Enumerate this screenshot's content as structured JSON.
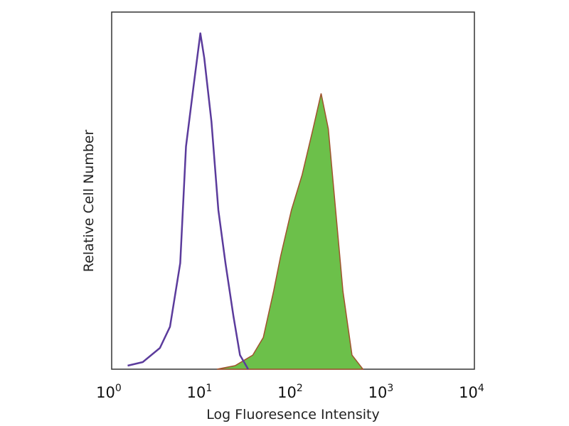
{
  "chart_data": {
    "type": "area",
    "title": "",
    "xlabel": "Log Fluoresence Intensity",
    "ylabel": "Relative Cell Number",
    "x_scale": "log",
    "xlim": [
      1,
      10000
    ],
    "ylim": [
      0,
      100
    ],
    "grid": false,
    "x_ticks": [
      {
        "base": "10",
        "exp": "0",
        "value": 1
      },
      {
        "base": "10",
        "exp": "1",
        "value": 10
      },
      {
        "base": "10",
        "exp": "2",
        "value": 100
      },
      {
        "base": "10",
        "exp": "3",
        "value": 1000
      },
      {
        "base": "10",
        "exp": "4",
        "value": 10000
      }
    ],
    "series": [
      {
        "style": "outline",
        "color": "#5b3b9c",
        "x": [
          1.5,
          2.2,
          3.4,
          4.4,
          5.7,
          6.6,
          8,
          9.5,
          10.5,
          12.6,
          15,
          18,
          22,
          26,
          32
        ],
        "y": [
          1,
          2,
          6,
          12,
          30,
          63,
          80,
          95,
          88,
          70,
          45,
          30,
          15,
          4,
          0
        ]
      },
      {
        "style": "filled",
        "color": "#6cc04a",
        "edge_color": "#a0522d",
        "x": [
          14.5,
          23,
          36,
          47,
          61,
          73,
          96,
          126,
          166,
          204,
          245,
          295,
          355,
          447,
          590
        ],
        "y": [
          0,
          1,
          4,
          9,
          22,
          32,
          45,
          55,
          68,
          78,
          68,
          45,
          22,
          4,
          0
        ]
      }
    ]
  }
}
